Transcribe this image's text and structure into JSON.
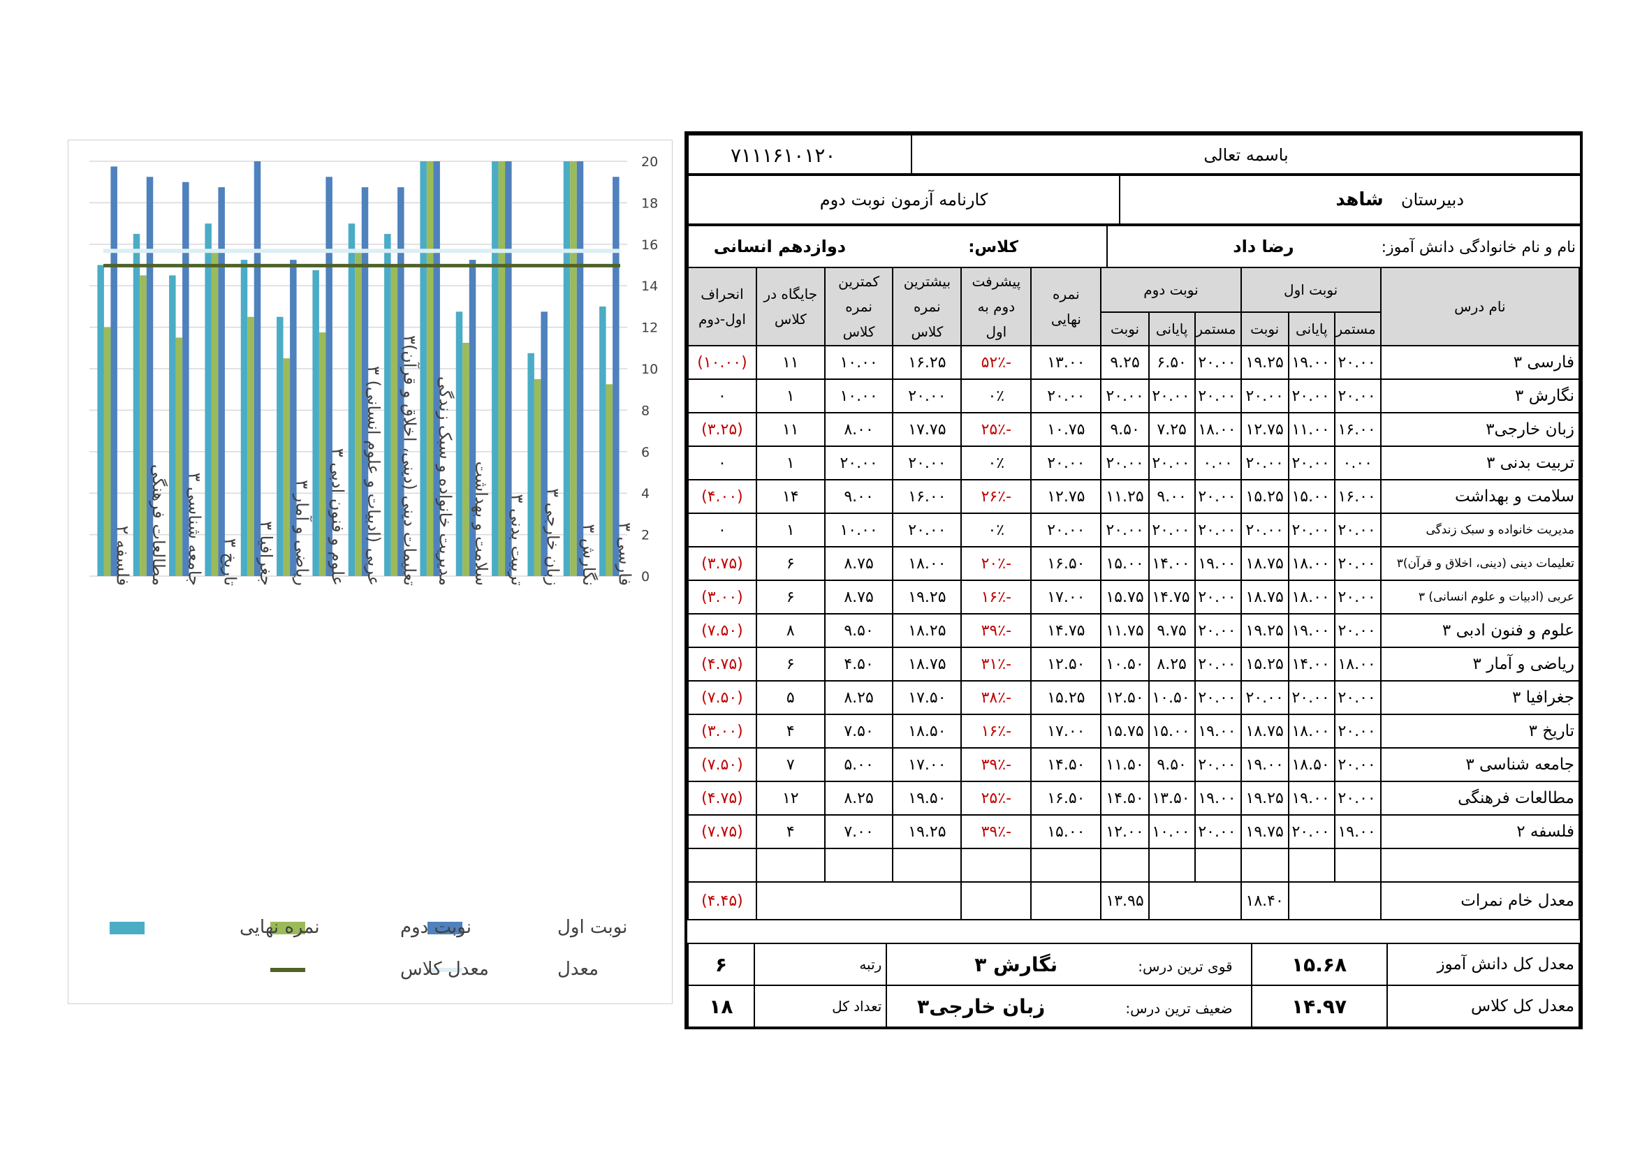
{
  "header": {
    "school_code": "۷۱۱۱۶۱۰۱۲۰",
    "bismillah": "باسمه تعالی",
    "report_title": "کارنامه آزمون نوبت دوم",
    "school_label": "دبیرستان",
    "school_name": "شاهد",
    "student_label": "نام و نام خانوادگی دانش آموز:",
    "student_name": "رضا داد",
    "class_label": "کلاس:",
    "class_name": "دوازدهم انسانی"
  },
  "columns": {
    "subject": "نام درس",
    "term1": "نوبت اول",
    "term2": "نوبت دوم",
    "continuous": "مستمر",
    "final_exam": "پایانی",
    "term": "نوبت",
    "final_grade": "نمره نهایی",
    "progress": "پیشرفت دوم به اول",
    "max_class": "بیشترین نمره کلاس",
    "min_class": "کمترین نمره کلاس",
    "rank_class": "جایگاه در کلاس",
    "deviation": "انحراف اول-دوم"
  },
  "rows": [
    {
      "subject": "فارسی ۳",
      "t1c": "۲۰.۰۰",
      "t1f": "۱۹.۰۰",
      "t1": "۱۹.۲۵",
      "t2c": "۲۰.۰۰",
      "t2f": "۶.۵۰",
      "t2": "۹.۲۵",
      "final": "۱۳.۰۰",
      "progress": "-۵۲٪",
      "max": "۱۶.۲۵",
      "min": "۱۰.۰۰",
      "rank": "۱۱",
      "dev": "(۱۰.۰۰)"
    },
    {
      "subject": "نگارش ۳",
      "t1c": "۲۰.۰۰",
      "t1f": "۲۰.۰۰",
      "t1": "۲۰.۰۰",
      "t2c": "۲۰.۰۰",
      "t2f": "۲۰.۰۰",
      "t2": "۲۰.۰۰",
      "final": "۲۰.۰۰",
      "progress": "۰٪",
      "max": "۲۰.۰۰",
      "min": "۱۰.۰۰",
      "rank": "۱",
      "dev": "۰"
    },
    {
      "subject": "زبان خارجی۳",
      "t1c": "۱۶.۰۰",
      "t1f": "۱۱.۰۰",
      "t1": "۱۲.۷۵",
      "t2c": "۱۸.۰۰",
      "t2f": "۷.۲۵",
      "t2": "۹.۵۰",
      "final": "۱۰.۷۵",
      "progress": "-۲۵٪",
      "max": "۱۷.۷۵",
      "min": "۸.۰۰",
      "rank": "۱۱",
      "dev": "(۳.۲۵)"
    },
    {
      "subject": "تربیت بدنی ۳",
      "t1c": "۰.۰۰",
      "t1f": "۲۰.۰۰",
      "t1": "۲۰.۰۰",
      "t2c": "۰.۰۰",
      "t2f": "۲۰.۰۰",
      "t2": "۲۰.۰۰",
      "final": "۲۰.۰۰",
      "progress": "۰٪",
      "max": "۲۰.۰۰",
      "min": "۲۰.۰۰",
      "rank": "۱",
      "dev": "۰"
    },
    {
      "subject": "سلامت و بهداشت",
      "t1c": "۱۶.۰۰",
      "t1f": "۱۵.۰۰",
      "t1": "۱۵.۲۵",
      "t2c": "۲۰.۰۰",
      "t2f": "۹.۰۰",
      "t2": "۱۱.۲۵",
      "final": "۱۲.۷۵",
      "progress": "-۲۶٪",
      "max": "۱۶.۰۰",
      "min": "۹.۰۰",
      "rank": "۱۴",
      "dev": "(۴.۰۰)"
    },
    {
      "subject": "مدیریت خانواده و سبک زندگی",
      "t1c": "۲۰.۰۰",
      "t1f": "۲۰.۰۰",
      "t1": "۲۰.۰۰",
      "t2c": "۲۰.۰۰",
      "t2f": "۲۰.۰۰",
      "t2": "۲۰.۰۰",
      "final": "۲۰.۰۰",
      "progress": "۰٪",
      "max": "۲۰.۰۰",
      "min": "۱۰.۰۰",
      "rank": "۱",
      "dev": "۰"
    },
    {
      "subject": "تعلیمات دینی (دینی، اخلاق و قرآن)۳",
      "t1c": "۲۰.۰۰",
      "t1f": "۱۸.۰۰",
      "t1": "۱۸.۷۵",
      "t2c": "۱۹.۰۰",
      "t2f": "۱۴.۰۰",
      "t2": "۱۵.۰۰",
      "final": "۱۶.۵۰",
      "progress": "-۲۰٪",
      "max": "۱۸.۰۰",
      "min": "۸.۷۵",
      "rank": "۶",
      "dev": "(۳.۷۵)"
    },
    {
      "subject": "عربی (ادبیات و علوم انسانی) ۳",
      "t1c": "۲۰.۰۰",
      "t1f": "۱۸.۰۰",
      "t1": "۱۸.۷۵",
      "t2c": "۲۰.۰۰",
      "t2f": "۱۴.۷۵",
      "t2": "۱۵.۷۵",
      "final": "۱۷.۰۰",
      "progress": "-۱۶٪",
      "max": "۱۹.۲۵",
      "min": "۸.۷۵",
      "rank": "۶",
      "dev": "(۳.۰۰)"
    },
    {
      "subject": "علوم و فنون ادبی ۳",
      "t1c": "۲۰.۰۰",
      "t1f": "۱۹.۰۰",
      "t1": "۱۹.۲۵",
      "t2c": "۲۰.۰۰",
      "t2f": "۹.۷۵",
      "t2": "۱۱.۷۵",
      "final": "۱۴.۷۵",
      "progress": "-۳۹٪",
      "max": "۱۸.۲۵",
      "min": "۹.۵۰",
      "rank": "۸",
      "dev": "(۷.۵۰)"
    },
    {
      "subject": "ریاضی و آمار ۳",
      "t1c": "۱۸.۰۰",
      "t1f": "۱۴.۰۰",
      "t1": "۱۵.۲۵",
      "t2c": "۲۰.۰۰",
      "t2f": "۸.۲۵",
      "t2": "۱۰.۵۰",
      "final": "۱۲.۵۰",
      "progress": "-۳۱٪",
      "max": "۱۸.۷۵",
      "min": "۴.۵۰",
      "rank": "۶",
      "dev": "(۴.۷۵)"
    },
    {
      "subject": "جغرافیا ۳",
      "t1c": "۲۰.۰۰",
      "t1f": "۲۰.۰۰",
      "t1": "۲۰.۰۰",
      "t2c": "۲۰.۰۰",
      "t2f": "۱۰.۵۰",
      "t2": "۱۲.۵۰",
      "final": "۱۵.۲۵",
      "progress": "-۳۸٪",
      "max": "۱۷.۵۰",
      "min": "۸.۲۵",
      "rank": "۵",
      "dev": "(۷.۵۰)"
    },
    {
      "subject": "تاریخ ۳",
      "t1c": "۲۰.۰۰",
      "t1f": "۱۸.۰۰",
      "t1": "۱۸.۷۵",
      "t2c": "۱۹.۰۰",
      "t2f": "۱۵.۰۰",
      "t2": "۱۵.۷۵",
      "final": "۱۷.۰۰",
      "progress": "-۱۶٪",
      "max": "۱۸.۵۰",
      "min": "۷.۵۰",
      "rank": "۴",
      "dev": "(۳.۰۰)"
    },
    {
      "subject": "جامعه شناسی ۳",
      "t1c": "۲۰.۰۰",
      "t1f": "۱۸.۵۰",
      "t1": "۱۹.۰۰",
      "t2c": "۲۰.۰۰",
      "t2f": "۹.۵۰",
      "t2": "۱۱.۵۰",
      "final": "۱۴.۵۰",
      "progress": "-۳۹٪",
      "max": "۱۷.۰۰",
      "min": "۵.۰۰",
      "rank": "۷",
      "dev": "(۷.۵۰)"
    },
    {
      "subject": "مطالعات فرهنگی",
      "t1c": "۲۰.۰۰",
      "t1f": "۱۹.۰۰",
      "t1": "۱۹.۲۵",
      "t2c": "۱۹.۰۰",
      "t2f": "۱۳.۵۰",
      "t2": "۱۴.۵۰",
      "final": "۱۶.۵۰",
      "progress": "-۲۵٪",
      "max": "۱۹.۵۰",
      "min": "۸.۲۵",
      "rank": "۱۲",
      "dev": "(۴.۷۵)"
    },
    {
      "subject": "فلسفه ۲",
      "t1c": "۱۹.۰۰",
      "t1f": "۲۰.۰۰",
      "t1": "۱۹.۷۵",
      "t2c": "۲۰.۰۰",
      "t2f": "۱۰.۰۰",
      "t2": "۱۲.۰۰",
      "final": "۱۵.۰۰",
      "progress": "-۳۹٪",
      "max": "۱۹.۲۵",
      "min": "۷.۰۰",
      "rank": "۴",
      "dev": "(۷.۷۵)"
    }
  ],
  "summary": {
    "avg_label": "معدل خام نمرات",
    "avg_t1": "۱۸.۴۰",
    "avg_t2": "۱۳.۹۵",
    "avg_dev": "(۴.۴۵)",
    "student_avg_label": "معدل کل دانش آموز",
    "student_avg": "۱۵.۶۸",
    "class_avg_label": "معدل کل کلاس",
    "class_avg": "۱۴.۹۷",
    "strongest_label": "قوی ترین درس:",
    "strongest": "نگارش ۳",
    "weakest_label": "ضعیف ترین درس:",
    "weakest": "زبان خارجی۳",
    "rank_label": "رتبه",
    "rank": "۶",
    "total_label": "تعداد کل",
    "total": "۱۸"
  },
  "chart_data": {
    "type": "bar",
    "categories": [
      "فلسفه ۲",
      "مطالعات فرهنگی",
      "جامعه شناسی ۳",
      "تاریخ ۳",
      "جغرافیا ۳",
      "ریاضی و آمار ۳",
      "علوم و فنون ادبی ۳",
      "عربی (ادبیات و علوم انسانی) ۳",
      "تعلیمات دینی (دینی، اخلاق و قرآن)۳",
      "مدیریت خانواده و سبک زندگی",
      "سلامت و بهداشت",
      "تربیت بدنی ۳",
      "زبان خارجی ۳",
      "نگارش ۳",
      "فارسی ۳"
    ],
    "series": [
      {
        "name": "نمره نهایی",
        "color": "#4bacc6",
        "values": [
          15.0,
          16.5,
          14.5,
          17.0,
          15.25,
          12.5,
          14.75,
          17.0,
          16.5,
          20.0,
          12.75,
          20.0,
          10.75,
          20.0,
          13.0
        ]
      },
      {
        "name": "نوبت دوم",
        "color": "#9bbb59",
        "values": [
          12.0,
          14.5,
          11.5,
          15.75,
          12.5,
          10.5,
          11.75,
          15.75,
          15.0,
          20.0,
          11.25,
          20.0,
          9.5,
          20.0,
          9.25
        ]
      },
      {
        "name": "نوبت اول",
        "color": "#4f81bd",
        "values": [
          19.75,
          19.25,
          19.0,
          18.75,
          20.0,
          15.25,
          19.25,
          18.75,
          18.75,
          20.0,
          15.25,
          20.0,
          12.75,
          20.0,
          19.25
        ]
      }
    ],
    "lines": [
      {
        "name": "معدل",
        "color": "#dbeef4",
        "value": 15.68
      },
      {
        "name": "معدل کلاس",
        "color": "#4f6228",
        "value": 14.97
      }
    ],
    "ylim": [
      0,
      20
    ],
    "yticks": [
      0,
      2,
      4,
      6,
      8,
      10,
      12,
      14,
      16,
      18,
      20
    ],
    "grid": true,
    "y_axis_side": "right",
    "legend": "bottom"
  }
}
